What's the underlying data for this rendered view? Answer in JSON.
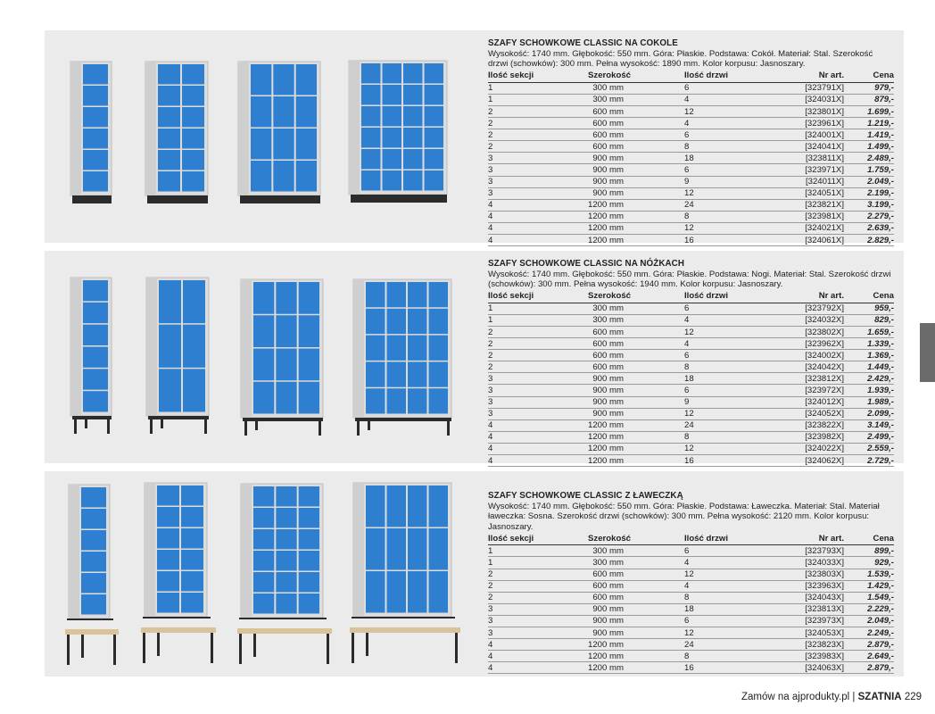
{
  "colors": {
    "panel": "#ebebeb",
    "door_blue": "#2f7fd0",
    "body_grey": "#dcdcdc",
    "tab": "#6b6b6b"
  },
  "headers": {
    "sections": "Ilość sekcji",
    "width": "Szerokość",
    "doors": "Ilość drzwi",
    "art": "Nr art.",
    "price": "Cena"
  },
  "sections": [
    {
      "title": "SZAFY SCHOWKOWE CLASSIC NA COKOLE",
      "description": "Wysokość: 1740 mm. Głębokość: 550 mm. Góra: Płaskie. Podstawa: Cokół. Materiał: Stal. Szerokość drzwi (schowków): 300 mm. Pełna wysokość: 1890 mm. Kolor korpusu: Jasnoszary.",
      "base": "plinth",
      "rows": [
        [
          "1",
          "300 mm",
          "6",
          "[323791X]",
          "979,-"
        ],
        [
          "1",
          "300 mm",
          "4",
          "[324031X]",
          "879,-"
        ],
        [
          "2",
          "600 mm",
          "12",
          "[323801X]",
          "1.699,-"
        ],
        [
          "2",
          "600 mm",
          "4",
          "[323961X]",
          "1.219,-"
        ],
        [
          "2",
          "600 mm",
          "6",
          "[324001X]",
          "1.419,-"
        ],
        [
          "2",
          "600 mm",
          "8",
          "[324041X]",
          "1.499,-"
        ],
        [
          "3",
          "900 mm",
          "18",
          "[323811X]",
          "2.489,-"
        ],
        [
          "3",
          "900 mm",
          "6",
          "[323971X]",
          "1.759,-"
        ],
        [
          "3",
          "900 mm",
          "9",
          "[324011X]",
          "2.049,-"
        ],
        [
          "3",
          "900 mm",
          "12",
          "[324051X]",
          "2.199,-"
        ],
        [
          "4",
          "1200 mm",
          "24",
          "[323821X]",
          "3.199,-"
        ],
        [
          "4",
          "1200 mm",
          "8",
          "[323981X]",
          "2.279,-"
        ],
        [
          "4",
          "1200 mm",
          "12",
          "[324021X]",
          "2.639,-"
        ],
        [
          "4",
          "1200 mm",
          "16",
          "[324061X]",
          "2.829,-"
        ]
      ]
    },
    {
      "title": "SZAFY SCHOWKOWE CLASSIC NA NÓŻKACH",
      "description": "Wysokość: 1740 mm. Głębokość: 550 mm. Góra: Płaskie. Podstawa: Nogi. Materiał: Stal. Szerokość drzwi (schowków): 300 mm. Pełna wysokość: 1940 mm. Kolor korpusu: Jasnoszary.",
      "base": "legs",
      "rows": [
        [
          "1",
          "300 mm",
          "6",
          "[323792X]",
          "959,-"
        ],
        [
          "1",
          "300 mm",
          "4",
          "[324032X]",
          "829,-"
        ],
        [
          "2",
          "600 mm",
          "12",
          "[323802X]",
          "1.659,-"
        ],
        [
          "2",
          "600 mm",
          "4",
          "[323962X]",
          "1.339,-"
        ],
        [
          "2",
          "600 mm",
          "6",
          "[324002X]",
          "1.369,-"
        ],
        [
          "2",
          "600 mm",
          "8",
          "[324042X]",
          "1.449,-"
        ],
        [
          "3",
          "900 mm",
          "18",
          "[323812X]",
          "2.429,-"
        ],
        [
          "3",
          "900 mm",
          "6",
          "[323972X]",
          "1.939,-"
        ],
        [
          "3",
          "900 mm",
          "9",
          "[324012X]",
          "1.989,-"
        ],
        [
          "3",
          "900 mm",
          "12",
          "[324052X]",
          "2.099,-"
        ],
        [
          "4",
          "1200 mm",
          "24",
          "[323822X]",
          "3.149,-"
        ],
        [
          "4",
          "1200 mm",
          "8",
          "[323982X]",
          "2.499,-"
        ],
        [
          "4",
          "1200 mm",
          "12",
          "[324022X]",
          "2.559,-"
        ],
        [
          "4",
          "1200 mm",
          "16",
          "[324062X]",
          "2.729,-"
        ]
      ]
    },
    {
      "title": "SZAFY SCHOWKOWE CLASSIC Z ŁAWECZKĄ",
      "description": "Wysokość: 1740 mm. Głębokość: 550 mm. Góra: Płaskie. Podstawa: Ławeczka. Materiał: Stal. Materiał ławeczka: Sosna. Szerokość drzwi (schowków): 300 mm. Pełna wysokość: 2120 mm. Kolor korpusu: Jasnoszary.",
      "base": "bench",
      "rows": [
        [
          "1",
          "300 mm",
          "6",
          "[323793X]",
          "899,-"
        ],
        [
          "1",
          "300 mm",
          "4",
          "[324033X]",
          "929,-"
        ],
        [
          "2",
          "600 mm",
          "12",
          "[323803X]",
          "1.539,-"
        ],
        [
          "2",
          "600 mm",
          "4",
          "[323963X]",
          "1.429,-"
        ],
        [
          "2",
          "600 mm",
          "8",
          "[324043X]",
          "1.549,-"
        ],
        [
          "3",
          "900 mm",
          "18",
          "[323813X]",
          "2.229,-"
        ],
        [
          "3",
          "900 mm",
          "6",
          "[323973X]",
          "2.049,-"
        ],
        [
          "3",
          "900 mm",
          "12",
          "[324053X]",
          "2.249,-"
        ],
        [
          "4",
          "1200 mm",
          "24",
          "[323823X]",
          "2.879,-"
        ],
        [
          "4",
          "1200 mm",
          "8",
          "[323983X]",
          "2.649,-"
        ],
        [
          "4",
          "1200 mm",
          "16",
          "[324063X]",
          "2.879,-"
        ]
      ]
    }
  ],
  "footer": {
    "text": "Zamów na ajprodukty.pl",
    "separator": "|",
    "section": "SZATNIA",
    "page": "229"
  }
}
